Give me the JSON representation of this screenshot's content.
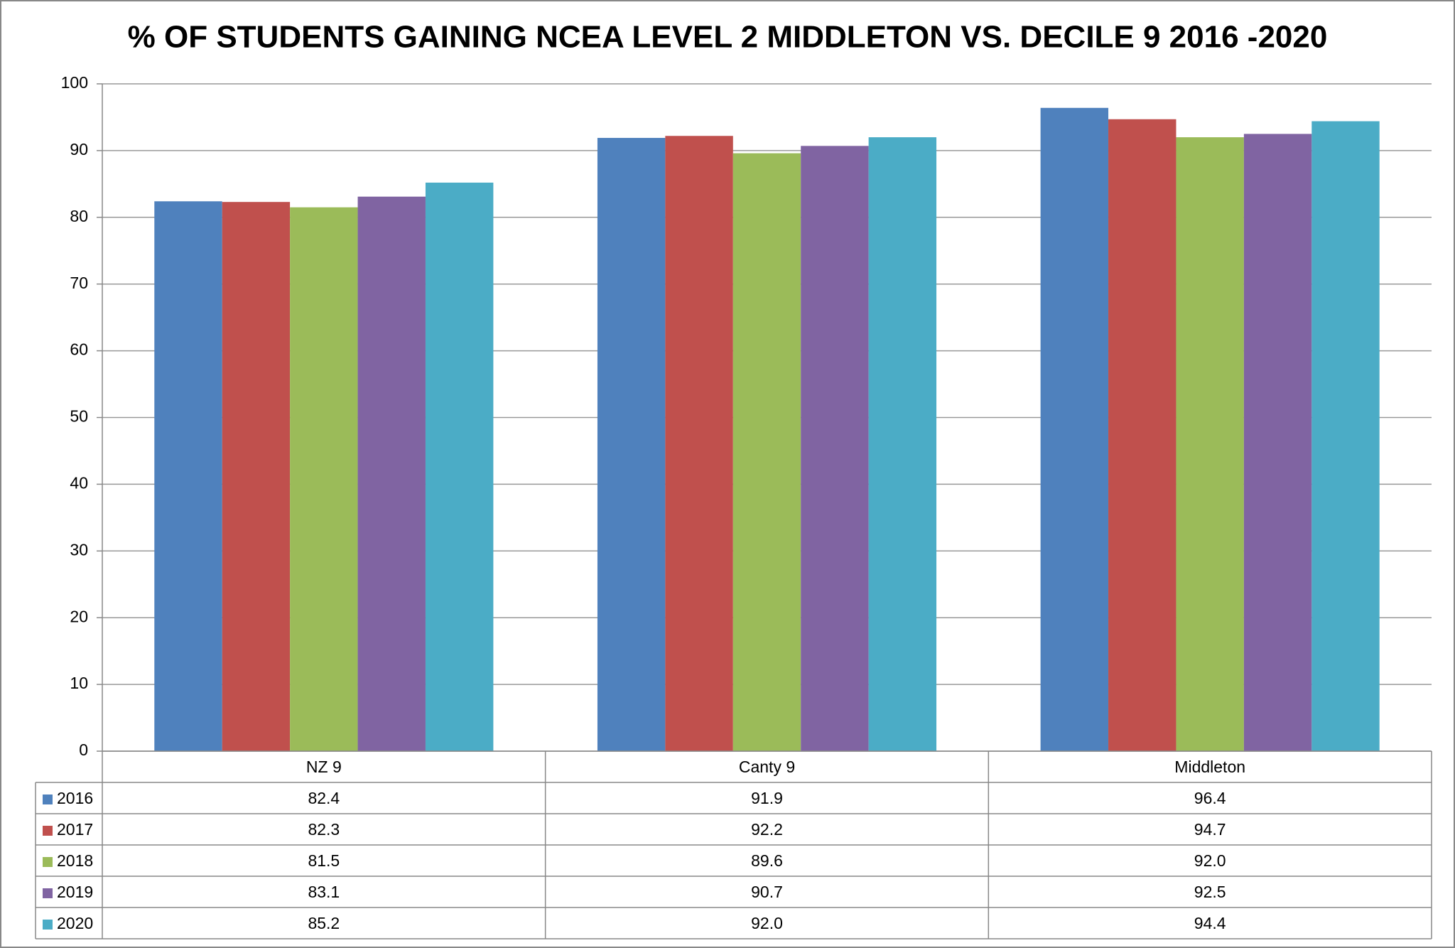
{
  "chart_data": {
    "type": "bar",
    "title": "% OF STUDENTS GAINING NCEA LEVEL 2 MIDDLETON VS. DECILE 9 2016 -2020",
    "categories": [
      "NZ 9",
      "Canty 9",
      "Middleton"
    ],
    "series": [
      {
        "name": "2016",
        "color": "#4f81bd",
        "values": [
          82.4,
          91.9,
          96.4
        ],
        "value_labels": [
          "82.4",
          "91.9",
          "96.4"
        ]
      },
      {
        "name": "2017",
        "color": "#c0504d",
        "values": [
          82.3,
          92.2,
          94.7
        ],
        "value_labels": [
          "82.3",
          "92.2",
          "94.7"
        ]
      },
      {
        "name": "2018",
        "color": "#9bbb59",
        "values": [
          81.5,
          89.6,
          92.0
        ],
        "value_labels": [
          "81.5",
          "89.6",
          "92.0"
        ]
      },
      {
        "name": "2019",
        "color": "#8064a2",
        "values": [
          83.1,
          90.7,
          92.5
        ],
        "value_labels": [
          "83.1",
          "90.7",
          "92.5"
        ]
      },
      {
        "name": "2020",
        "color": "#4bacc6",
        "values": [
          85.2,
          92.0,
          94.4
        ],
        "value_labels": [
          "85.2",
          "92.0",
          "94.4"
        ]
      }
    ],
    "ylim": [
      0,
      100
    ],
    "yticks": [
      0,
      10,
      20,
      30,
      40,
      50,
      60,
      70,
      80,
      90,
      100
    ],
    "grid": true,
    "legend": "table"
  }
}
